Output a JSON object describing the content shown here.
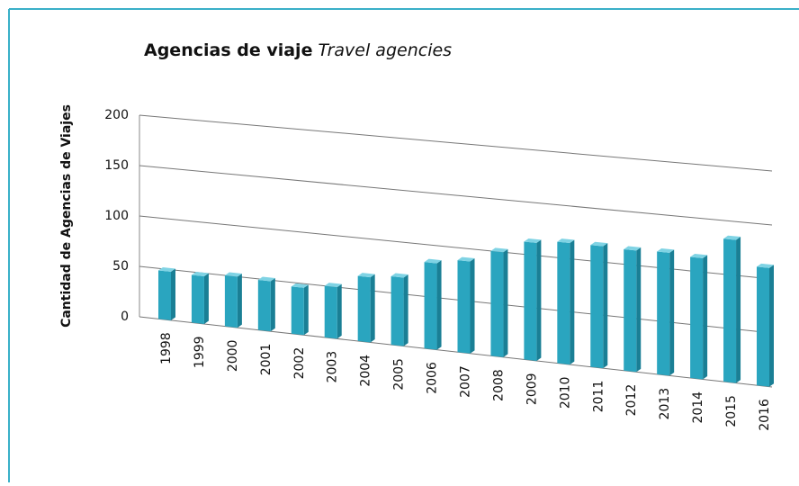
{
  "chart_data": {
    "type": "bar",
    "title": "Agencias de viaje",
    "subtitle": "Travel agencies",
    "y_label": "Cantidad de Agencias de Viajes",
    "categories": [
      "1998",
      "1999",
      "2000",
      "2001",
      "2002",
      "2003",
      "2004",
      "2005",
      "2006",
      "2007",
      "2008",
      "2009",
      "2010",
      "2011",
      "2012",
      "2013",
      "2014",
      "2015",
      "2016"
    ],
    "values": [
      48,
      47,
      50,
      49,
      46,
      50,
      63,
      66,
      83,
      88,
      100,
      112,
      115,
      115,
      114,
      115,
      113,
      133,
      110
    ],
    "color": "#2aa5bf",
    "ylim": [
      0,
      200
    ],
    "yticks": [
      0,
      50,
      100,
      150,
      200
    ],
    "grid": true
  }
}
